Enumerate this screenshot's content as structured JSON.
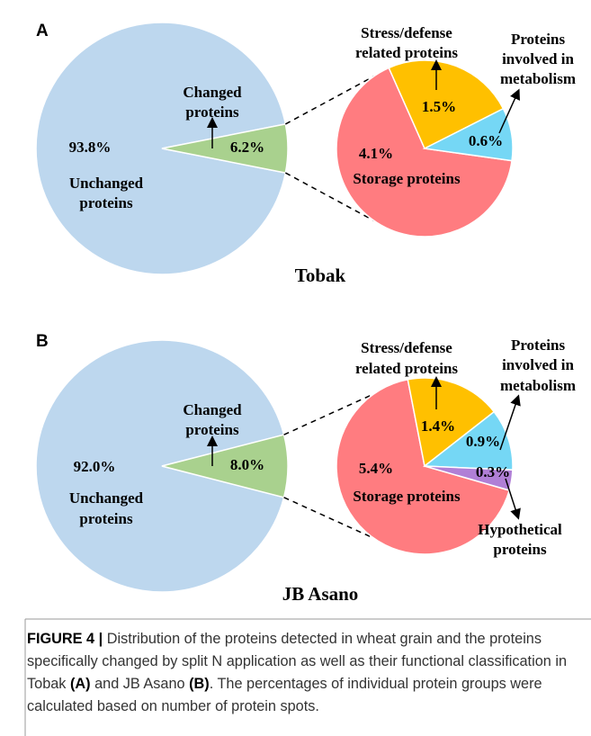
{
  "chart_data": [
    {
      "type": "pie",
      "panel": "A",
      "title": "Tobak",
      "categories": [
        [
          "Unchanged",
          "proteins"
        ],
        [
          "Changed",
          "proteins"
        ]
      ],
      "values": [
        93.8,
        6.2
      ],
      "value_labels": [
        "93.8%",
        "6.2%"
      ],
      "colors": [
        "#bdd7ee",
        "#a9d18e"
      ]
    },
    {
      "type": "pie",
      "categories": [
        [
          "Storage proteins"
        ],
        [
          "Stress/defense",
          "related proteins"
        ],
        [
          "Proteins",
          "involved in",
          "metabolism"
        ]
      ],
      "values": [
        4.1,
        1.5,
        0.6
      ],
      "value_labels": [
        "4.1%",
        "1.5%",
        "0.6%"
      ],
      "colors": [
        "#ff7c80",
        "#ffc000",
        "#75d7f5"
      ]
    },
    {
      "type": "pie",
      "panel": "B",
      "title": "JB Asano",
      "categories": [
        [
          "Unchanged",
          "proteins"
        ],
        [
          "Changed",
          "proteins"
        ]
      ],
      "values": [
        92.0,
        8.0
      ],
      "value_labels": [
        "92.0%",
        "8.0%"
      ],
      "colors": [
        "#bdd7ee",
        "#a9d18e"
      ]
    },
    {
      "type": "pie",
      "categories": [
        [
          "Storage proteins"
        ],
        [
          "Stress/defense",
          "related proteins"
        ],
        [
          "Proteins",
          "involved in",
          "metabolism"
        ],
        [
          "Hypothetical",
          "proteins"
        ]
      ],
      "values": [
        5.4,
        1.4,
        0.9,
        0.3
      ],
      "value_labels": [
        "5.4%",
        "1.4%",
        "0.9%",
        "0.3%"
      ],
      "colors": [
        "#ff7c80",
        "#ffc000",
        "#75d7f5",
        "#b07fd6"
      ]
    }
  ],
  "caption": [
    {
      "text": "FIGURE 4 |",
      "bold": true
    },
    {
      "text": " Distribution of the proteins detected in wheat grain and the proteins specifically changed by split N application as well as their functional classification in Tobak ",
      "bold": false
    },
    {
      "text": "(A)",
      "bold": true
    },
    {
      "text": " and JB Asano ",
      "bold": false
    },
    {
      "text": "(B)",
      "bold": true
    },
    {
      "text": ". The percentages of individual protein groups were calculated based on number of protein spots.",
      "bold": false
    }
  ]
}
